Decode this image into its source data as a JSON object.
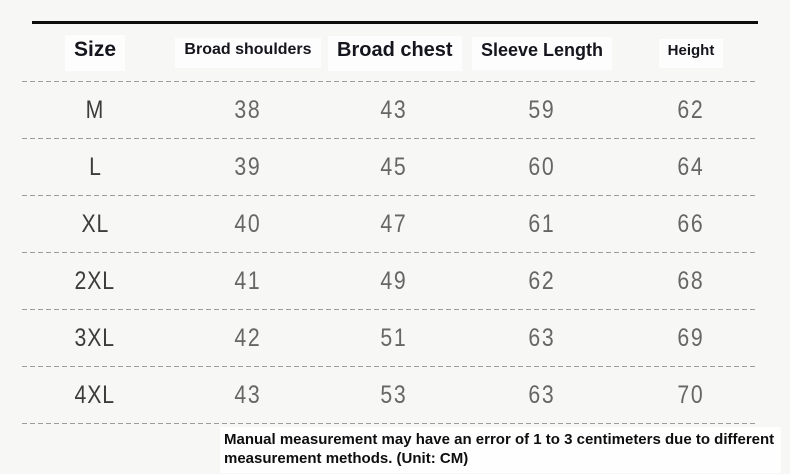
{
  "page": {
    "background_color": "#f7f7f6",
    "top_rule_color": "#0d0d0d",
    "dash_line_color": "#9c9c9c",
    "highlight_color": "#fdfdfd"
  },
  "table": {
    "headers": [
      "Size",
      "Broad shoulders",
      "Broad chest",
      "Sleeve Length",
      "Height"
    ],
    "rows": [
      {
        "size": "M",
        "shoulders": "38",
        "chest": "43",
        "sleeve": "59",
        "height": "62"
      },
      {
        "size": "L",
        "shoulders": "39",
        "chest": "45",
        "sleeve": "60",
        "height": "64"
      },
      {
        "size": "XL",
        "shoulders": "40",
        "chest": "47",
        "sleeve": "61",
        "height": "66"
      },
      {
        "size": "2XL",
        "shoulders": "41",
        "chest": "49",
        "sleeve": "62",
        "height": "68"
      },
      {
        "size": "3XL",
        "shoulders": "42",
        "chest": "51",
        "sleeve": "63",
        "height": "69"
      },
      {
        "size": "4XL",
        "shoulders": "43",
        "chest": "53",
        "sleeve": "63",
        "height": "70"
      }
    ]
  },
  "footer": {
    "line1": "Manual measurement may have an error of 1 to 3 centimeters due to different",
    "line2": "measurement methods. (Unit: CM)"
  },
  "chart_data": {
    "type": "table",
    "title": "Garment size chart",
    "unit": "CM",
    "columns": [
      "Size",
      "Broad shoulders",
      "Broad chest",
      "Sleeve Length",
      "Height"
    ],
    "rows": [
      [
        "M",
        38,
        43,
        59,
        62
      ],
      [
        "L",
        39,
        45,
        60,
        64
      ],
      [
        "XL",
        40,
        47,
        61,
        66
      ],
      [
        "2XL",
        41,
        49,
        62,
        68
      ],
      [
        "3XL",
        42,
        51,
        63,
        69
      ],
      [
        "4XL",
        43,
        53,
        63,
        70
      ]
    ],
    "note": "Manual measurement may have an error of 1 to 3 centimeters due to different measurement methods. (Unit: CM)",
    "layout": "dashed horizontal separators between rows, thick solid rule above header, no vertical lines"
  }
}
